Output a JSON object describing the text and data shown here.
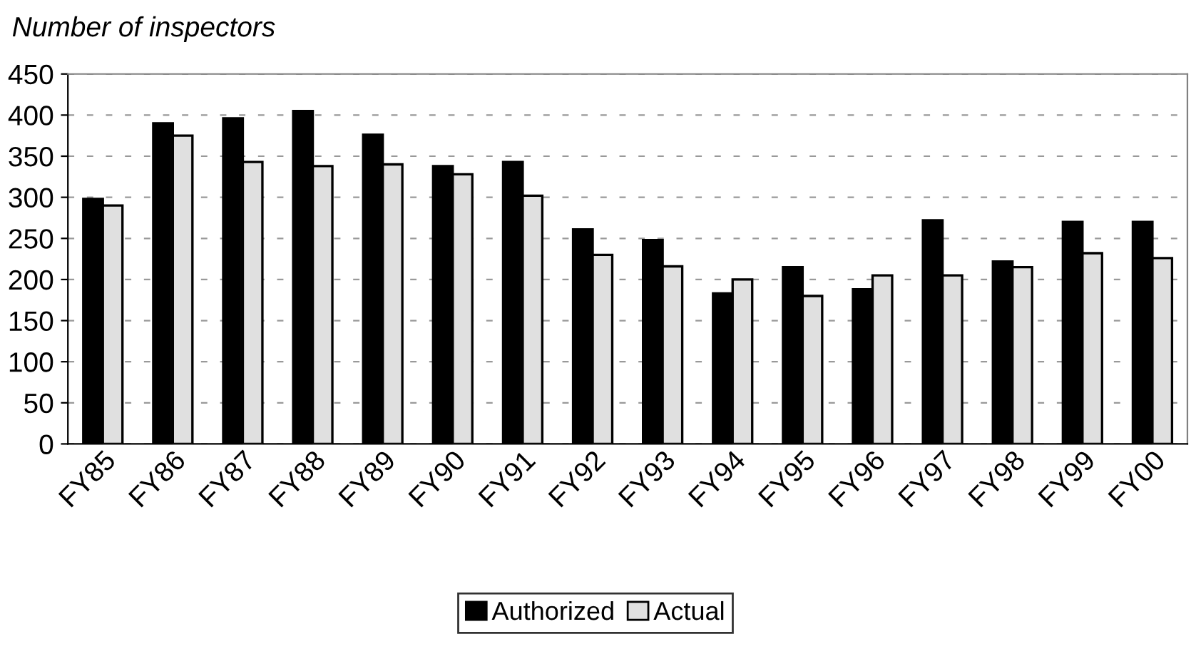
{
  "chart_data": {
    "type": "bar",
    "title": "Number of inspectors",
    "categories": [
      "FY85",
      "FY86",
      "FY87",
      "FY88",
      "FY89",
      "FY90",
      "FY91",
      "FY92",
      "FY93",
      "FY94",
      "FY95",
      "FY96",
      "FY97",
      "FY98",
      "FY99",
      "FY00"
    ],
    "series": [
      {
        "name": "Authorized",
        "color": "#000000",
        "values": [
          298,
          390,
          396,
          405,
          376,
          338,
          343,
          261,
          248,
          183,
          215,
          188,
          272,
          222,
          270,
          270
        ]
      },
      {
        "name": "Actual",
        "color": "#e0e0e0",
        "values": [
          290,
          375,
          343,
          338,
          340,
          328,
          302,
          230,
          216,
          200,
          180,
          205,
          205,
          215,
          232,
          226
        ]
      }
    ],
    "ylim": [
      0,
      450
    ],
    "yticks": [
      0,
      50,
      100,
      150,
      200,
      250,
      300,
      350,
      400,
      450
    ],
    "grid": "y",
    "legend": "bottom"
  }
}
